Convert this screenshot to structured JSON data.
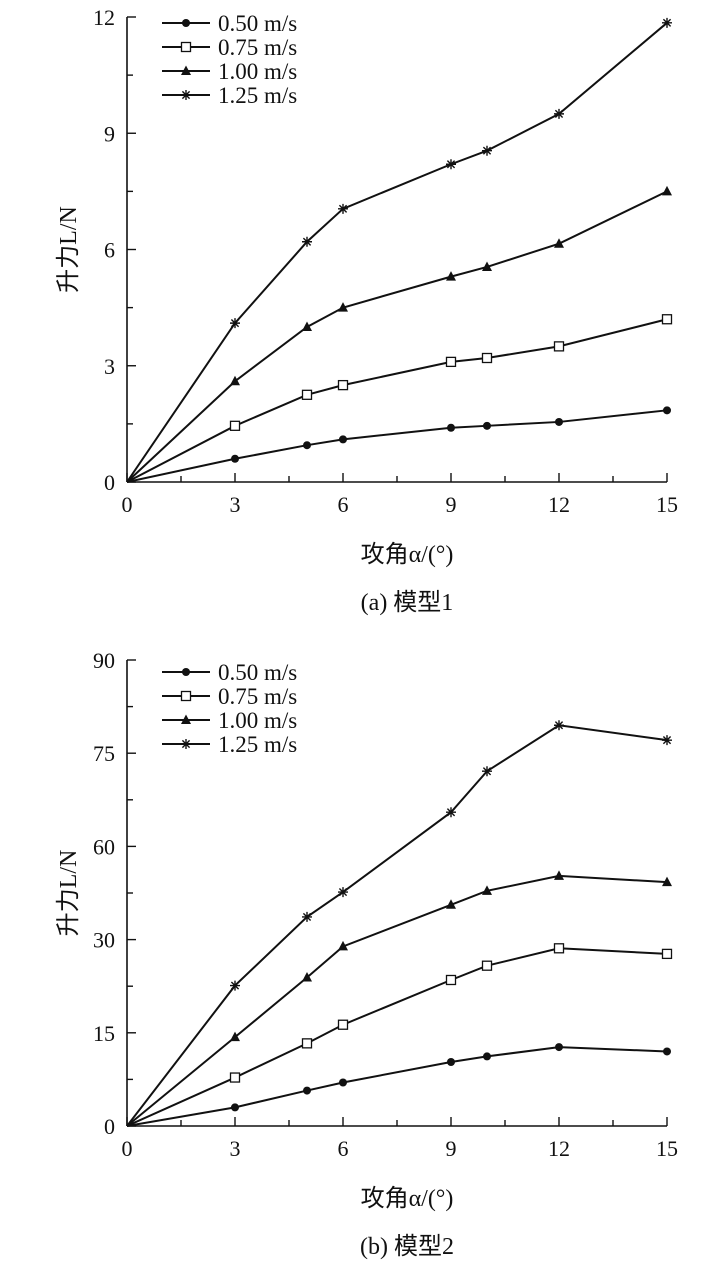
{
  "chart_data": [
    {
      "type": "line",
      "caption": "(a) 模型1",
      "xlabel": "攻角α/(°)",
      "ylabel": "升力L/N",
      "xlim": [
        0,
        15
      ],
      "ylim": [
        0,
        12
      ],
      "xticks": [
        "0",
        "3",
        "6",
        "9",
        "12",
        "15"
      ],
      "yticks": [
        "0",
        "3",
        "6",
        "9",
        "12"
      ],
      "x": [
        0,
        3,
        5,
        6,
        9,
        10,
        12,
        15
      ],
      "series": [
        {
          "name": "0.50 m/s",
          "marker": "filled-circle",
          "values": [
            0,
            0.6,
            0.95,
            1.1,
            1.4,
            1.45,
            1.55,
            1.85
          ]
        },
        {
          "name": "0.75 m/s",
          "marker": "open-square",
          "values": [
            0,
            1.45,
            2.25,
            2.5,
            3.1,
            3.2,
            3.5,
            4.2
          ]
        },
        {
          "name": "1.00 m/s",
          "marker": "filled-triangle",
          "values": [
            0,
            2.6,
            4.0,
            4.5,
            5.3,
            5.55,
            6.15,
            7.5
          ]
        },
        {
          "name": "1.25 m/s",
          "marker": "star",
          "values": [
            0,
            4.1,
            6.2,
            7.05,
            8.2,
            8.55,
            9.5,
            11.85
          ]
        }
      ],
      "grid": false,
      "legend": "top-left"
    },
    {
      "type": "line",
      "caption": "(b) 模型2",
      "xlabel": "攻角α/(°)",
      "ylabel": "升力L/N",
      "xlim": [
        0,
        15
      ],
      "ylim": [
        0,
        90
      ],
      "xticks": [
        "0",
        "3",
        "6",
        "9",
        "12",
        "15"
      ],
      "yticks": [
        "0",
        "15",
        "30",
        "60",
        "75",
        "90"
      ],
      "x": [
        0,
        3,
        5,
        6,
        9,
        10,
        12,
        15
      ],
      "series": [
        {
          "name": "0.50 m/s",
          "marker": "filled-circle",
          "values": [
            0,
            3.0,
            5.7,
            7.0,
            10.3,
            11.2,
            12.7,
            12.0
          ]
        },
        {
          "name": "0.75 m/s",
          "marker": "open-square",
          "values": [
            0,
            7.8,
            13.3,
            16.3,
            23.5,
            25.8,
            28.6,
            27.7
          ]
        },
        {
          "name": "1.00 m/s",
          "marker": "filled-triangle",
          "values": [
            0,
            14.3,
            23.9,
            28.9,
            41.2,
            45.7,
            50.5,
            48.5
          ]
        },
        {
          "name": "1.25 m/s",
          "marker": "star",
          "values": [
            0,
            22.6,
            37.3,
            45.3,
            65.5,
            72.1,
            79.5,
            77.1
          ]
        }
      ],
      "grid": false,
      "legend": "top-left"
    }
  ]
}
